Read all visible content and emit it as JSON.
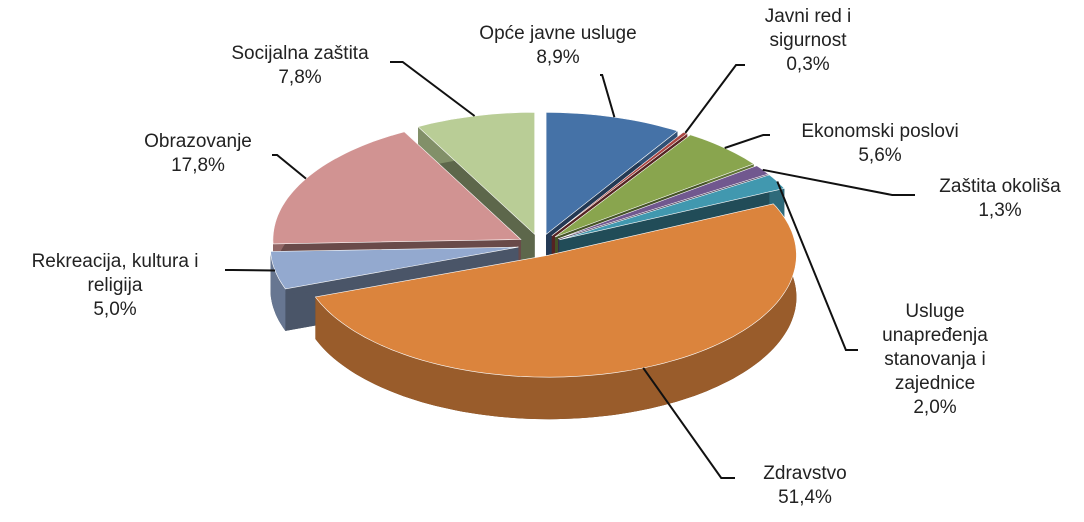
{
  "chart_data": {
    "type": "pie3d",
    "categories": [
      "Opće javne usluge",
      "Javni red i sigurnost",
      "Ekonomski poslovi",
      "Zaštita okoliša",
      "Usluge unapređenja stanovanja i zajednice",
      "Zdravstvo",
      "Rekreacija, kultura i religija",
      "Obrazovanje",
      "Socijalna zaštita"
    ],
    "values": [
      8.9,
      0.3,
      5.6,
      1.3,
      2.0,
      51.4,
      5.0,
      17.8,
      7.8
    ],
    "value_labels": [
      "8,9%",
      "0,3%",
      "5,6%",
      "1,3%",
      "2,0%",
      "51,4%",
      "5,0%",
      "17,8%",
      "7,8%"
    ],
    "colors": [
      "#4572a7",
      "#aa4643",
      "#89a54e",
      "#71588f",
      "#4198af",
      "#db843d",
      "#93a9cf",
      "#d19392",
      "#b9cd96"
    ]
  }
}
